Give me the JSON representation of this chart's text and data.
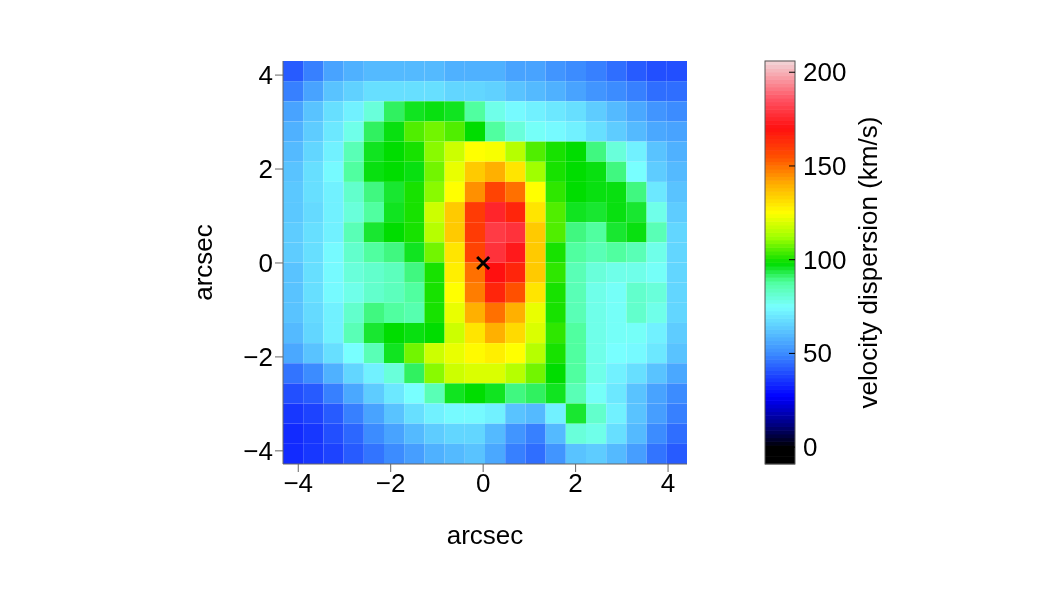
{
  "chart_data": {
    "type": "heatmap",
    "xlabel": "arcsec",
    "ylabel": "arcsec",
    "clabel": "velocity dispersion (km/s)",
    "xlim": [
      -4.33,
      4.41
    ],
    "ylim": [
      -4.28,
      4.3
    ],
    "xticks": [
      -4,
      -2,
      0,
      2,
      4
    ],
    "yticks": [
      -4,
      -2,
      0,
      2,
      4
    ],
    "clim": [
      -9,
      206
    ],
    "cticks": [
      0,
      50,
      100,
      150,
      200
    ],
    "marker": "cross",
    "series": [
      {
        "type": "scatter",
        "x": [
          0
        ],
        "values": [
          0
        ],
        "color": "#000000"
      }
    ],
    "cells": [
      [
        42,
        48,
        55,
        58,
        60,
        60,
        60,
        60,
        58,
        58,
        58,
        55,
        55,
        52,
        50,
        48,
        45,
        42,
        40,
        40
      ],
      [
        48,
        55,
        62,
        65,
        68,
        68,
        68,
        68,
        66,
        66,
        65,
        62,
        60,
        58,
        55,
        52,
        50,
        48,
        45,
        45
      ],
      [
        55,
        62,
        68,
        72,
        80,
        92,
        96,
        97,
        96,
        88,
        78,
        74,
        72,
        70,
        68,
        64,
        60,
        56,
        52,
        50
      ],
      [
        58,
        64,
        70,
        78,
        92,
        97,
        105,
        108,
        105,
        98,
        88,
        80,
        76,
        74,
        72,
        68,
        64,
        60,
        56,
        55
      ],
      [
        60,
        66,
        72,
        85,
        96,
        98,
        100,
        110,
        118,
        125,
        124,
        115,
        105,
        100,
        98,
        90,
        80,
        72,
        62,
        58
      ],
      [
        62,
        68,
        74,
        88,
        97,
        98,
        97,
        108,
        122,
        135,
        140,
        130,
        112,
        100,
        98,
        97,
        90,
        75,
        64,
        60
      ],
      [
        63,
        68,
        72,
        82,
        90,
        95,
        100,
        110,
        125,
        145,
        158,
        150,
        125,
        102,
        98,
        97,
        97,
        90,
        70,
        62
      ],
      [
        63,
        67,
        72,
        80,
        88,
        96,
        100,
        118,
        135,
        160,
        175,
        165,
        130,
        105,
        96,
        95,
        97,
        95,
        78,
        64
      ],
      [
        64,
        68,
        72,
        85,
        95,
        98,
        100,
        115,
        135,
        160,
        180,
        178,
        135,
        105,
        90,
        88,
        95,
        97,
        85,
        66
      ],
      [
        64,
        68,
        74,
        82,
        88,
        90,
        96,
        108,
        130,
        158,
        178,
        172,
        135,
        100,
        88,
        85,
        88,
        85,
        78,
        66
      ],
      [
        62,
        68,
        74,
        80,
        82,
        84,
        90,
        100,
        128,
        150,
        170,
        165,
        135,
        102,
        85,
        80,
        78,
        78,
        76,
        66
      ],
      [
        62,
        68,
        74,
        78,
        82,
        84,
        88,
        100,
        125,
        148,
        165,
        155,
        130,
        100,
        85,
        78,
        76,
        82,
        80,
        66
      ],
      [
        62,
        67,
        72,
        82,
        90,
        88,
        86,
        100,
        122,
        140,
        150,
        140,
        122,
        100,
        85,
        78,
        76,
        82,
        78,
        66
      ],
      [
        60,
        66,
        72,
        85,
        95,
        98,
        97,
        98,
        118,
        130,
        140,
        132,
        120,
        102,
        88,
        78,
        76,
        76,
        72,
        64
      ],
      [
        56,
        62,
        68,
        75,
        85,
        96,
        108,
        118,
        122,
        126,
        128,
        125,
        115,
        100,
        88,
        78,
        75,
        74,
        70,
        62
      ],
      [
        46,
        50,
        58,
        66,
        72,
        80,
        92,
        110,
        118,
        120,
        120,
        115,
        108,
        98,
        88,
        78,
        72,
        68,
        62,
        56
      ],
      [
        40,
        42,
        48,
        56,
        64,
        70,
        75,
        85,
        96,
        98,
        96,
        90,
        92,
        96,
        85,
        76,
        70,
        62,
        55,
        50
      ],
      [
        36,
        38,
        42,
        48,
        55,
        62,
        68,
        72,
        74,
        74,
        72,
        62,
        60,
        72,
        95,
        82,
        72,
        62,
        54,
        48
      ],
      [
        34,
        36,
        40,
        44,
        50,
        55,
        60,
        64,
        66,
        66,
        60,
        52,
        48,
        60,
        80,
        78,
        68,
        60,
        50,
        45
      ],
      [
        34,
        36,
        38,
        42,
        46,
        50,
        54,
        58,
        60,
        62,
        56,
        48,
        45,
        52,
        62,
        64,
        60,
        54,
        46,
        42
      ]
    ]
  }
}
